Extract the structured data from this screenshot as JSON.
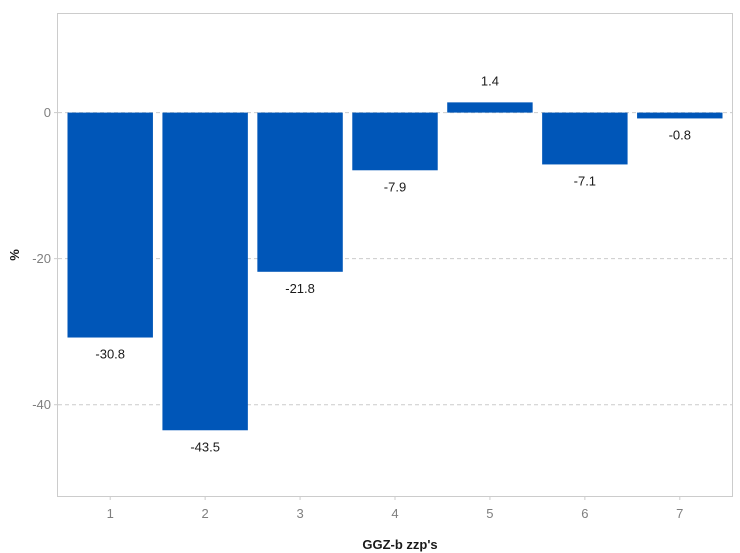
{
  "chart_data": {
    "type": "bar",
    "title": "",
    "xlabel": "GGZ-b zzp's",
    "ylabel": "%",
    "categories": [
      "1",
      "2",
      "3",
      "4",
      "5",
      "6",
      "7"
    ],
    "values": [
      -30.8,
      -43.5,
      -21.8,
      -7.9,
      1.4,
      -7.1,
      -0.8
    ],
    "data_labels": [
      "-30.8",
      "-43.5",
      "-21.8",
      "-7.9",
      "1.4",
      "-7.1",
      "-0.8"
    ],
    "ylim": [
      -52.5,
      13.5
    ],
    "yticks": [
      0,
      -20,
      -40
    ],
    "ytick_labels": [
      "0",
      "-20",
      "-40"
    ],
    "grid": "horizontal-dashed",
    "legend": "none",
    "bar_color": "#0056b8",
    "grid_color": "#cccccc",
    "border_color": "#cccccc"
  }
}
